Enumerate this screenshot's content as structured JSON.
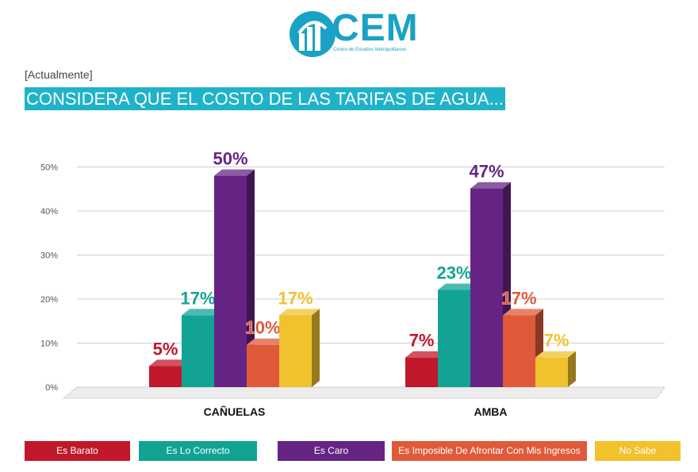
{
  "logo": {
    "text": "CEM",
    "subtitle": "Centro de Estudios Metropolitanos"
  },
  "question": {
    "tag": "[Actualmente]",
    "title": "CONSIDERA QUE EL COSTO DE LAS TARIFAS DE AGUA..."
  },
  "colors": {
    "accent": "#1fb3c9",
    "brand": "#1aa2c6"
  },
  "chart_data": {
    "type": "bar",
    "categories": [
      "CAÑUELAS",
      "AMBA"
    ],
    "ylim": [
      0,
      50
    ],
    "yticks": [
      "0%",
      "10%",
      "20%",
      "30%",
      "40%",
      "50%"
    ],
    "series": [
      {
        "name": "Es Barato",
        "color": "#c0182a",
        "values": [
          5,
          7
        ],
        "labels": [
          "5%",
          "7%"
        ]
      },
      {
        "name": "Es Lo Correcto",
        "color": "#12a394",
        "values": [
          17,
          23
        ],
        "labels": [
          "17%",
          "23%"
        ]
      },
      {
        "name": "Es Caro",
        "color": "#652484",
        "values": [
          50,
          47
        ],
        "labels": [
          "50%",
          "47%"
        ]
      },
      {
        "name": "Es Imposible De Afrontar Con Mis Ingresos",
        "color": "#e05a3a",
        "values": [
          10,
          17
        ],
        "labels": [
          "10%",
          "17%"
        ]
      },
      {
        "name": "No Sabe",
        "color": "#f2c12e",
        "values": [
          17,
          7
        ],
        "labels": [
          "17%",
          "7%"
        ]
      }
    ],
    "legend": "bottom"
  }
}
